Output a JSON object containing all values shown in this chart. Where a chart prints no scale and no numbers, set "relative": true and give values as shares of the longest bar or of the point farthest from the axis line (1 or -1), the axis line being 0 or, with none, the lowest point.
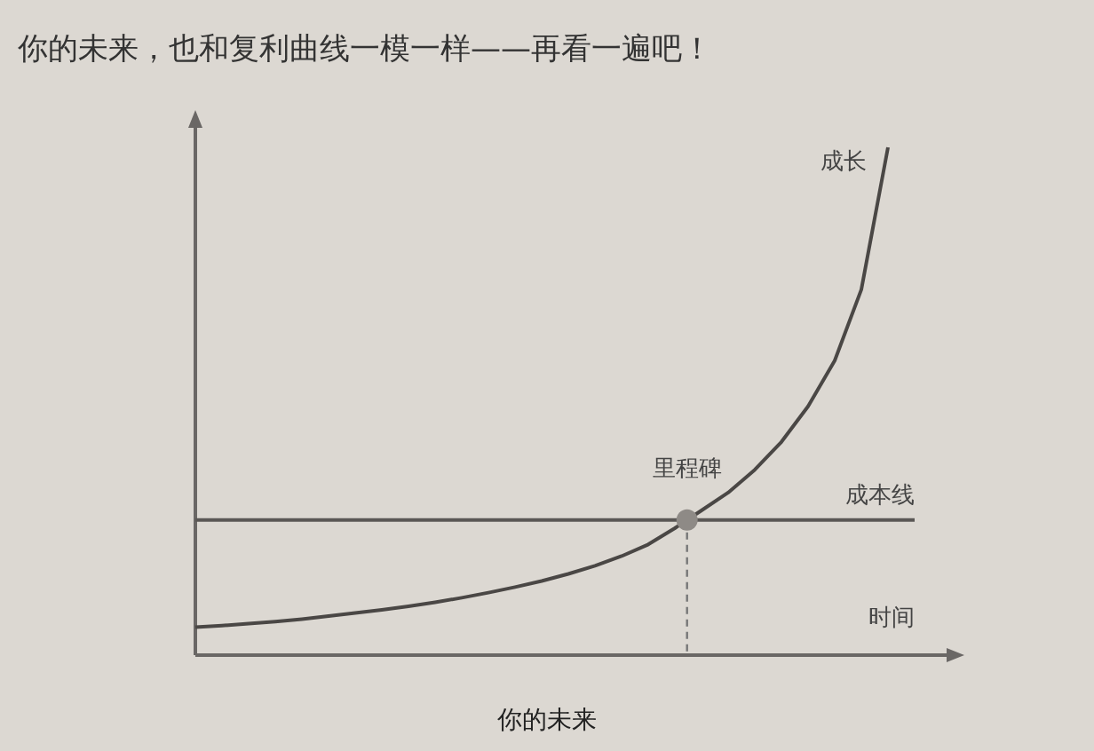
{
  "chart_data": {
    "type": "line",
    "title": "你的未来，也和复利曲线一模一样——再看一遍吧！",
    "xlabel": "时间",
    "relative": true,
    "marker": "none",
    "line_style": "solid",
    "categories": [
      null,
      null,
      null,
      null,
      null,
      null,
      null,
      null,
      null,
      null,
      null,
      null,
      null,
      null,
      null,
      null,
      null,
      null,
      null,
      null,
      null,
      null,
      null,
      null,
      null,
      null,
      null
    ],
    "series": [
      {
        "name": "成长",
        "color": "#4a4745",
        "values": [
          0.055,
          0.058,
          0.062,
          0.066,
          0.071,
          0.077,
          0.083,
          0.089,
          0.096,
          0.104,
          0.113,
          0.123,
          0.134,
          0.146,
          0.16,
          0.176,
          0.195,
          0.218,
          0.25,
          0.285,
          0.32,
          0.365,
          0.42,
          0.49,
          0.58,
          0.72,
          1.0
        ]
      }
    ],
    "ref_lines": [
      {
        "axis": "y",
        "value": 0.266,
        "label": "成本线",
        "color": "#5a5755"
      }
    ],
    "annotations": [
      {
        "text": "里程碑",
        "y": 0.266
      },
      "你的未来"
    ]
  }
}
